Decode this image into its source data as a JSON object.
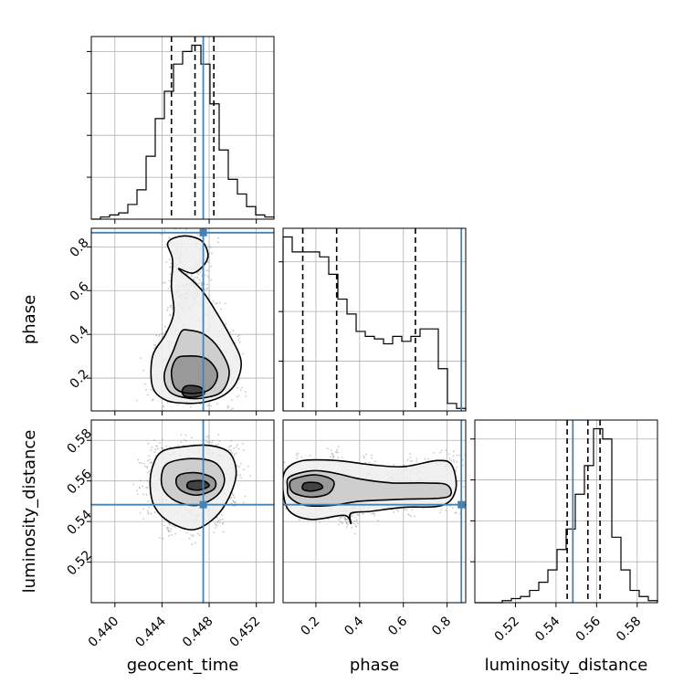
{
  "chart_data": {
    "type": "corner",
    "parameters": [
      "geocent_time",
      "phase",
      "luminosity_distance"
    ],
    "axis_labels": {
      "geocent_time": "geocent_time",
      "phase": "phase",
      "luminosity_distance": "luminosity_distance"
    },
    "ranges": {
      "geocent_time": [
        0.438,
        0.4535
      ],
      "phase": [
        0.05,
        0.885
      ],
      "luminosity_distance": [
        0.5,
        0.59
      ]
    },
    "ticks": {
      "geocent_time": [
        {
          "v": 0.44,
          "label": "0.440"
        },
        {
          "v": 0.444,
          "label": "0.444"
        },
        {
          "v": 0.448,
          "label": "0.448"
        },
        {
          "v": 0.452,
          "label": "0.452"
        }
      ],
      "phase": [
        {
          "v": 0.2,
          "label": "0.2"
        },
        {
          "v": 0.4,
          "label": "0.4"
        },
        {
          "v": 0.6,
          "label": "0.6"
        },
        {
          "v": 0.8,
          "label": "0.8"
        }
      ],
      "luminosity_distance": [
        {
          "v": 0.52,
          "label": "0.52"
        },
        {
          "v": 0.54,
          "label": "0.54"
        },
        {
          "v": 0.56,
          "label": "0.56"
        },
        {
          "v": 0.58,
          "label": "0.58"
        }
      ]
    },
    "truths": {
      "geocent_time": 0.4475,
      "phase": 0.865,
      "luminosity_distance": 0.5483
    },
    "quantiles": {
      "geocent_time": [
        0.4448,
        0.4468,
        0.4484
      ],
      "phase": [
        0.14,
        0.295,
        0.655
      ],
      "luminosity_distance": [
        0.5455,
        0.5557,
        0.5617
      ]
    },
    "histograms": {
      "geocent_time": {
        "edges_range": [
          0.438,
          0.4535
        ],
        "counts": [
          0,
          1,
          2,
          3,
          7,
          14,
          30,
          48,
          61,
          74,
          80,
          83,
          74,
          55,
          33,
          19,
          12,
          6,
          2,
          1
        ]
      },
      "phase": {
        "edges_range": [
          0.05,
          0.885
        ],
        "counts": [
          70,
          64,
          64,
          64,
          62,
          55,
          45,
          39,
          32,
          30,
          29,
          27,
          30,
          28,
          30,
          33,
          33,
          17,
          3,
          1
        ]
      },
      "luminosity_distance": {
        "edges_range": [
          0.5,
          0.59
        ],
        "counts": [
          0,
          0,
          0,
          1,
          2,
          3,
          6,
          10,
          16,
          26,
          36,
          53,
          67,
          85,
          80,
          32,
          16,
          6,
          3,
          1
        ]
      }
    },
    "pair_plots": [
      {
        "x": "geocent_time",
        "y": "phase",
        "contours": [
          [
            [
              0.4454,
              0.7
            ],
            [
              0.4465,
              0.65
            ],
            [
              0.4474,
              0.6
            ],
            [
              0.4484,
              0.52
            ],
            [
              0.4497,
              0.4
            ],
            [
              0.4507,
              0.28
            ],
            [
              0.4503,
              0.18
            ],
            [
              0.4492,
              0.12
            ],
            [
              0.4476,
              0.09
            ],
            [
              0.446,
              0.085
            ],
            [
              0.4443,
              0.1
            ],
            [
              0.4432,
              0.16
            ],
            [
              0.4432,
              0.3
            ],
            [
              0.4443,
              0.4
            ],
            [
              0.445,
              0.5
            ],
            [
              0.4448,
              0.62
            ],
            [
              0.4449,
              0.74
            ],
            [
              0.4445,
              0.82
            ],
            [
              0.4458,
              0.85
            ],
            [
              0.4473,
              0.83
            ],
            [
              0.4479,
              0.77
            ],
            [
              0.4476,
              0.72
            ],
            [
              0.4466,
              0.68
            ]
          ],
          [
            [
              0.4462,
              0.42
            ],
            [
              0.4476,
              0.4
            ],
            [
              0.4489,
              0.33
            ],
            [
              0.4497,
              0.23
            ],
            [
              0.4491,
              0.14
            ],
            [
              0.4476,
              0.11
            ],
            [
              0.446,
              0.11
            ],
            [
              0.4446,
              0.14
            ],
            [
              0.4442,
              0.22
            ],
            [
              0.445,
              0.33
            ],
            [
              0.4456,
              0.41
            ]
          ],
          [
            [
              0.4458,
              0.3
            ],
            [
              0.4477,
              0.29
            ],
            [
              0.4487,
              0.22
            ],
            [
              0.4481,
              0.15
            ],
            [
              0.4466,
              0.13
            ],
            [
              0.4452,
              0.15
            ],
            [
              0.4448,
              0.22
            ],
            [
              0.4451,
              0.28
            ]
          ],
          [
            [
              0.4461,
              0.165
            ],
            [
              0.4472,
              0.16
            ],
            [
              0.4476,
              0.13
            ],
            [
              0.447,
              0.115
            ],
            [
              0.446,
              0.115
            ],
            [
              0.4457,
              0.14
            ]
          ]
        ]
      },
      {
        "x": "geocent_time",
        "y": "luminosity_distance",
        "contours": [
          [
            [
              0.444,
              0.5745
            ],
            [
              0.446,
              0.577
            ],
            [
              0.448,
              0.5775
            ],
            [
              0.4497,
              0.574
            ],
            [
              0.4503,
              0.564
            ],
            [
              0.4497,
              0.552
            ],
            [
              0.4485,
              0.542
            ],
            [
              0.4467,
              0.536
            ],
            [
              0.4447,
              0.5395
            ],
            [
              0.4434,
              0.547
            ],
            [
              0.443,
              0.557
            ],
            [
              0.4432,
              0.567
            ]
          ],
          [
            [
              0.4446,
              0.569
            ],
            [
              0.4465,
              0.571
            ],
            [
              0.4485,
              0.569
            ],
            [
              0.4493,
              0.561
            ],
            [
              0.4487,
              0.553
            ],
            [
              0.447,
              0.548
            ],
            [
              0.4452,
              0.55
            ],
            [
              0.4441,
              0.556
            ],
            [
              0.444,
              0.564
            ]
          ],
          [
            [
              0.4455,
              0.563
            ],
            [
              0.447,
              0.564
            ],
            [
              0.4484,
              0.561
            ],
            [
              0.4484,
              0.556
            ],
            [
              0.447,
              0.553
            ],
            [
              0.4457,
              0.555
            ],
            [
              0.4452,
              0.559
            ]
          ],
          [
            [
              0.4463,
              0.5595
            ],
            [
              0.4475,
              0.56
            ],
            [
              0.448,
              0.5575
            ],
            [
              0.4471,
              0.5555
            ],
            [
              0.4462,
              0.5565
            ]
          ]
        ]
      },
      {
        "x": "phase",
        "y": "luminosity_distance",
        "contours": [
          [
            [
              0.06,
              0.565
            ],
            [
              0.14,
              0.57
            ],
            [
              0.3,
              0.57
            ],
            [
              0.45,
              0.568
            ],
            [
              0.6,
              0.567
            ],
            [
              0.75,
              0.57
            ],
            [
              0.82,
              0.568
            ],
            [
              0.84,
              0.556
            ],
            [
              0.78,
              0.548
            ],
            [
              0.6,
              0.547
            ],
            [
              0.45,
              0.545
            ],
            [
              0.36,
              0.544
            ],
            [
              0.36,
              0.539
            ],
            [
              0.33,
              0.543
            ],
            [
              0.18,
              0.541
            ],
            [
              0.08,
              0.545
            ],
            [
              0.05,
              0.555
            ]
          ],
          [
            [
              0.08,
              0.562
            ],
            [
              0.18,
              0.565
            ],
            [
              0.28,
              0.564
            ],
            [
              0.4,
              0.561
            ],
            [
              0.55,
              0.559
            ],
            [
              0.7,
              0.559
            ],
            [
              0.8,
              0.558
            ],
            [
              0.8,
              0.552
            ],
            [
              0.6,
              0.551
            ],
            [
              0.4,
              0.55
            ],
            [
              0.28,
              0.548
            ],
            [
              0.15,
              0.548
            ],
            [
              0.08,
              0.552
            ],
            [
              0.07,
              0.557
            ]
          ],
          [
            [
              0.1,
              0.561
            ],
            [
              0.2,
              0.563
            ],
            [
              0.28,
              0.56
            ],
            [
              0.26,
              0.554
            ],
            [
              0.18,
              0.552
            ],
            [
              0.1,
              0.554
            ],
            [
              0.08,
              0.558
            ]
          ],
          [
            [
              0.15,
              0.559
            ],
            [
              0.21,
              0.559
            ],
            [
              0.23,
              0.5565
            ],
            [
              0.18,
              0.555
            ],
            [
              0.14,
              0.556
            ]
          ]
        ]
      }
    ],
    "grid": true,
    "colors": {
      "truth": "#4682b4",
      "contour": "#000000",
      "grid": "#b0b0b0"
    }
  }
}
